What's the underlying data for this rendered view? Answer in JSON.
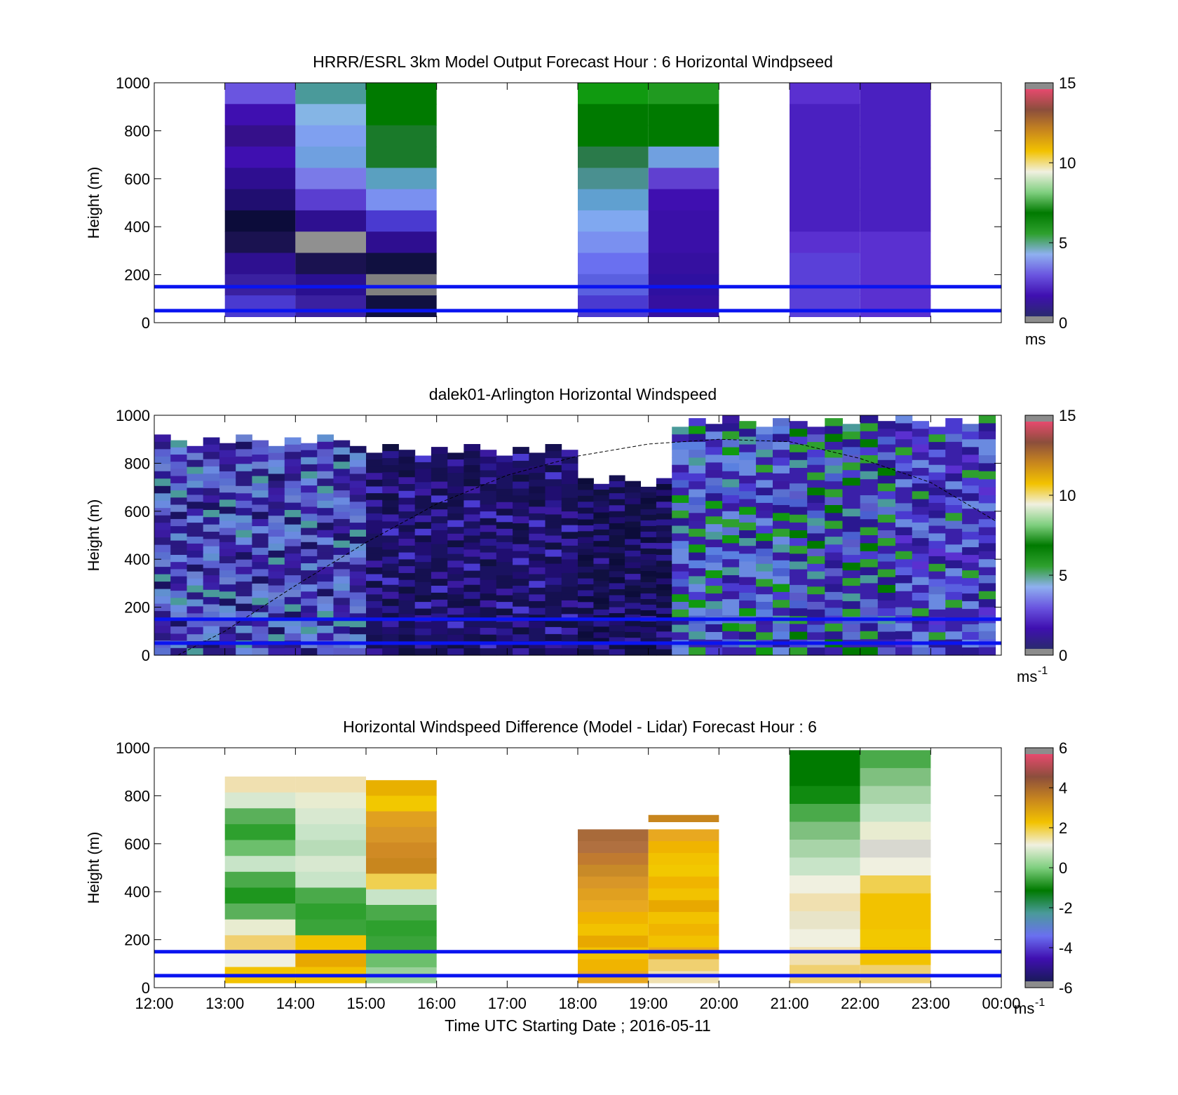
{
  "figure": {
    "xlabel": "Time UTC  Starting Date ; 2016-05-11",
    "x_tick_labels": [
      "12:00",
      "13:00",
      "14:00",
      "15:00",
      "16:00",
      "17:00",
      "18:00",
      "19:00",
      "20:00",
      "21:00",
      "22:00",
      "23:00",
      "00:00"
    ]
  },
  "chart_data": [
    {
      "type": "heatmap",
      "title": "HRRR/ESRL 3km Model Output   Forecast Hour : 6 Horizontal Windpseed",
      "ylabel": "Height (m)",
      "xlim": [
        "12:00",
        "00:00"
      ],
      "ylim": [
        0,
        1000
      ],
      "y_ticks": [
        "0",
        "200",
        "400",
        "600",
        "800",
        "1000"
      ],
      "colorbar": {
        "ticks": [
          "0",
          "5",
          "10",
          "15"
        ],
        "range": [
          0,
          15
        ],
        "unit": "ms",
        "colors": [
          "#2a2a6e",
          "#3f0fb0",
          "#6a55e0",
          "#8fb0f0",
          "#2ea02e",
          "#007a00",
          "#7fcf7f",
          "#f0f0e0",
          "#f2c200",
          "#c8861e",
          "#8c4e3c",
          "#e64a6e"
        ]
      },
      "reference_lines_m": [
        50,
        150
      ],
      "columns": [
        {
          "start": "13:00",
          "end": "14:00",
          "top": 1000,
          "bottom": 25,
          "colors": [
            "#6a55e0",
            "#3f0fb0",
            "#35108a",
            "#3f0fb0",
            "#2e0e90",
            "#200e70",
            "#0c0c3a",
            "#1a1250",
            "#2e1090",
            "#3a20a0",
            "#4a3ad0"
          ]
        },
        {
          "start": "14:00",
          "end": "15:00",
          "top": 1000,
          "bottom": 25,
          "colors": [
            "#4a9a9a",
            "#85b5e5",
            "#7fa0f0",
            "#6fa0e0",
            "#7a7ae8",
            "#5a3ed0",
            "#2e1090",
            "#909090",
            "#1a1250",
            "#2a1090",
            "#3a20a0"
          ]
        },
        {
          "start": "15:00",
          "end": "16:00",
          "top": 1000,
          "bottom": 25,
          "colors": [
            "#007a00",
            "#007a00",
            "#1a7a2a",
            "#1a7a2a",
            "#5aa0c0",
            "#7a90f0",
            "#4a3ad0",
            "#2e0e90",
            "#101040",
            "#808080",
            "#101040"
          ]
        },
        {
          "start": "18:00",
          "end": "19:00",
          "top": 1000,
          "bottom": 25,
          "colors": [
            "#109a10",
            "#007a00",
            "#007a00",
            "#2a7a4a",
            "#4a9090",
            "#60a0d0",
            "#80a8f0",
            "#7a90f0",
            "#6a70f0",
            "#5a60e0",
            "#4a3ad0"
          ]
        },
        {
          "start": "19:00",
          "end": "20:00",
          "top": 1000,
          "bottom": 25,
          "colors": [
            "#209a20",
            "#007a00",
            "#007a00",
            "#70a0e0",
            "#6040d0",
            "#3f0fb0",
            "#3a10a8",
            "#3a10a8",
            "#3510a0",
            "#2e10a0",
            "#3510a0"
          ]
        },
        {
          "start": "21:00",
          "end": "22:00",
          "top": 1000,
          "bottom": 25,
          "colors": [
            "#5a30d0",
            "#4a20c0",
            "#4a20c0",
            "#4a20c0",
            "#4a20c0",
            "#4a20c0",
            "#4a20c0",
            "#5a30d0",
            "#5a40d8",
            "#5a40d8",
            "#5a40d8"
          ]
        },
        {
          "start": "22:00",
          "end": "23:00",
          "top": 1000,
          "bottom": 25,
          "colors": [
            "#4a20c0",
            "#4a20c0",
            "#4a20c0",
            "#4a20c0",
            "#4a20c0",
            "#4a20c0",
            "#4a20c0",
            "#5a30d0",
            "#5a30d0",
            "#5a30d0",
            "#5a30d0"
          ]
        }
      ]
    },
    {
      "type": "heatmap",
      "title": "dalek01-Arlington  Horizontal Windspeed",
      "ylabel": "Height (m)",
      "xlim": [
        "12:00",
        "00:00"
      ],
      "ylim": [
        0,
        1000
      ],
      "y_ticks": [
        "0",
        "200",
        "400",
        "600",
        "800",
        "1000"
      ],
      "colorbar": {
        "ticks": [
          "0",
          "5",
          "10",
          "15"
        ],
        "range": [
          0,
          15
        ],
        "unit": "ms-1",
        "colors": [
          "#2a2a6e",
          "#3f0fb0",
          "#6a55e0",
          "#8fb0f0",
          "#2ea02e",
          "#007a00",
          "#7fcf7f",
          "#f0f0e0",
          "#f2c200",
          "#c8861e",
          "#8c4e3c",
          "#e64a6e"
        ]
      },
      "reference_lines_m": [
        50,
        150
      ],
      "dashed_curve": {
        "x": [
          "12:20",
          "13:00",
          "14:00",
          "15:00",
          "16:00",
          "17:00",
          "18:00",
          "19:00",
          "20:00",
          "21:00",
          "22:00",
          "23:00",
          "23:55"
        ],
        "y": [
          0,
          100,
          290,
          470,
          630,
          750,
          830,
          880,
          900,
          890,
          820,
          720,
          560
        ]
      },
      "segments": [
        {
          "start": "12:00",
          "end": "15:00",
          "top": 920,
          "colors": [
            "#3a1aa0",
            "#5a60d0",
            "#6a80d0",
            "#4a9a9a",
            "#6090d0",
            "#5a5ac8",
            "#3a20a8",
            "#2a1a80",
            "#5a70d0",
            "#2a1890",
            "#1a1260",
            "#6a8ae0",
            "#2a1880"
          ]
        },
        {
          "start": "15:00",
          "end": "18:00",
          "top": 880,
          "colors": [
            "#3a1aa0",
            "#4a3ad0",
            "#3a20a8",
            "#2a1890",
            "#200e70",
            "#1a1260",
            "#151050",
            "#120e48",
            "#101040",
            "#1a1260",
            "#200e70",
            "#1a1260",
            "#151050"
          ]
        },
        {
          "start": "18:00",
          "end": "19:20",
          "top": 750,
          "colors": [
            "#2a1890",
            "#3a20a8",
            "#200e70",
            "#151050",
            "#101040",
            "#101040",
            "#120e48",
            "#0c0c3a",
            "#101040",
            "#1a1260",
            "#0c0c3a",
            "#1a1260",
            "#2a1890"
          ]
        },
        {
          "start": "19:20",
          "end": "21:00",
          "top": 1000,
          "colors": [
            "#109a10",
            "#2ea02e",
            "#4a9a9a",
            "#5a80e0",
            "#6a8ae0",
            "#4a3ad0",
            "#3a20a8",
            "#5a70d0",
            "#2a1890",
            "#3a20a8",
            "#6a8ae0",
            "#3a1aa0",
            "#4a60d0"
          ]
        },
        {
          "start": "21:00",
          "end": "22:30",
          "top": 1000,
          "colors": [
            "#2ea02e",
            "#007a00",
            "#2ea02e",
            "#4a9a9a",
            "#3a20a8",
            "#5a5ac8",
            "#2a1890",
            "#3a20a8",
            "#4a3ad0",
            "#2a1890",
            "#3a20a8",
            "#5a70d0",
            "#4a60d0"
          ]
        },
        {
          "start": "22:30",
          "end": "23:55",
          "top": 1000,
          "colors": [
            "#5a30d0",
            "#2ea02e",
            "#5a60e0",
            "#6a8ae0",
            "#3a20a8",
            "#4a3ad0",
            "#2a1890",
            "#3a20a8",
            "#4a3ad0",
            "#2a1890",
            "#3a20a8",
            "#5a70d0",
            "#6a8ae0"
          ]
        }
      ]
    },
    {
      "type": "heatmap",
      "title": "Horizontal Windspeed Difference (Model - Lidar) Forecast Hour : 6",
      "ylabel": "Height (m)",
      "xlabel": "Time UTC  Starting Date ; 2016-05-11",
      "xlim": [
        "12:00",
        "00:00"
      ],
      "ylim": [
        0,
        1000
      ],
      "y_ticks": [
        "0",
        "200",
        "400",
        "600",
        "800",
        "1000"
      ],
      "colorbar": {
        "ticks": [
          "-6",
          "-4",
          "-2",
          "0",
          "2",
          "4",
          "6"
        ],
        "range": [
          -6,
          6
        ],
        "unit": "ms-1",
        "colors": [
          "#1a1a5a",
          "#3f0fb0",
          "#6a70f0",
          "#4a9a9a",
          "#007a00",
          "#7fcf7f",
          "#f0f0e0",
          "#f2c200",
          "#c8861e",
          "#8c4e3c",
          "#e64a6e"
        ]
      },
      "reference_lines_m": [
        50,
        150
      ],
      "columns": [
        {
          "start": "13:00",
          "end": "14:00",
          "top": 880,
          "bottom": 20,
          "colors": [
            "#f0e0b0",
            "#d8e8d0",
            "#5ab05a",
            "#2ea02e",
            "#6cbf6c",
            "#c8e4c8",
            "#4aaa4a",
            "#1e961e",
            "#5ab05a",
            "#e8ecd0",
            "#f0d070",
            "#f0f0e0",
            "#f2c200"
          ]
        },
        {
          "start": "14:00",
          "end": "15:00",
          "top": 880,
          "bottom": 20,
          "colors": [
            "#f0e0b0",
            "#e8ecd0",
            "#d8e8d0",
            "#c8e4c8",
            "#b8dcb8",
            "#d8e8d0",
            "#c8e4c8",
            "#4aaa4a",
            "#2ea02e",
            "#3aa43a",
            "#f2c200",
            "#e8a800",
            "#f2c200"
          ]
        },
        {
          "start": "15:00",
          "end": "16:00",
          "top": 865,
          "bottom": 20,
          "colors": [
            "#e8b000",
            "#f2c800",
            "#e0a020",
            "#d89628",
            "#d08a24",
            "#c8861e",
            "#f0d050",
            "#c8e4c8",
            "#4aaa4a",
            "#2ea02e",
            "#3aa43a",
            "#6cbf6c",
            "#9ad09a"
          ]
        },
        {
          "start": "18:00",
          "end": "19:00",
          "top": 660,
          "bottom": 20,
          "colors": [
            "#a86a3a",
            "#b07040",
            "#c07a30",
            "#c88a28",
            "#d89628",
            "#e0a020",
            "#e8a820",
            "#f0b400",
            "#f2c200",
            "#e8a800",
            "#f2c200",
            "#f0b400",
            "#e8a820"
          ]
        },
        {
          "start": "19:00",
          "end": "20:00",
          "top": 660,
          "bottom": 20,
          "colors": [
            "#e8a820",
            "#f0b400",
            "#f2c200",
            "#f2c800",
            "#f0b400",
            "#f2c200",
            "#e8a800",
            "#f2c200",
            "#f0b400",
            "#f2c200",
            "#e8a820",
            "#f0d070",
            "#f0e0b0"
          ]
        },
        {
          "start": "21:00",
          "end": "22:00",
          "top": 990,
          "bottom": 20,
          "colors": [
            "#007a00",
            "#007a00",
            "#108a10",
            "#4aaa4a",
            "#7fc07f",
            "#a8d4a8",
            "#c8e4c8",
            "#f0f0e0",
            "#f0e0b0",
            "#e8e4c8",
            "#f0f0e0",
            "#f0e0b0",
            "#f0d070"
          ]
        },
        {
          "start": "22:00",
          "end": "23:00",
          "top": 990,
          "bottom": 20,
          "colors": [
            "#4aaa4a",
            "#7fc07f",
            "#a8d4a8",
            "#c8e4c8",
            "#e8ecd0",
            "#d8d8d0",
            "#f0f0e0",
            "#f0d050",
            "#f2c200",
            "#f2c200",
            "#f2c800",
            "#f2c200",
            "#f0d070"
          ]
        }
      ],
      "extra_strip": {
        "start": "19:00",
        "end": "20:00",
        "from": 690,
        "to": 720,
        "color": "#c8861e"
      }
    }
  ]
}
